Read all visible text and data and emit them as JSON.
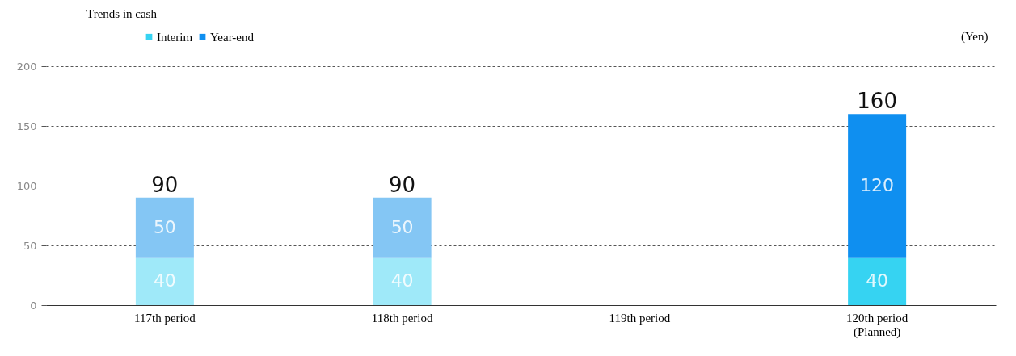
{
  "chart_data": {
    "type": "bar",
    "title": "Trends in cash",
    "ylabel": "(Yen)",
    "categories": [
      "117th period",
      "118th period",
      "119th period",
      "120th period\n(Planned)"
    ],
    "series": [
      {
        "name": "Interim",
        "color": "#36d3f2",
        "colors": [
          "#9fe9f9",
          "#9fe9f9",
          null,
          "#36d3f2"
        ],
        "values": [
          40,
          40,
          null,
          40
        ]
      },
      {
        "name": "Year-end",
        "color": "#0f8ff0",
        "colors": [
          "#84c6f4",
          "#84c6f4",
          null,
          "#0f8ff0"
        ],
        "values": [
          50,
          50,
          null,
          120
        ]
      }
    ],
    "stacked": true,
    "data_labels": true,
    "totals": [
      "90",
      "90",
      null,
      "160"
    ],
    "ylim": [
      0,
      200
    ],
    "yticks": [
      0,
      50,
      100,
      150,
      200
    ],
    "grid": "y",
    "legend": "top left"
  }
}
